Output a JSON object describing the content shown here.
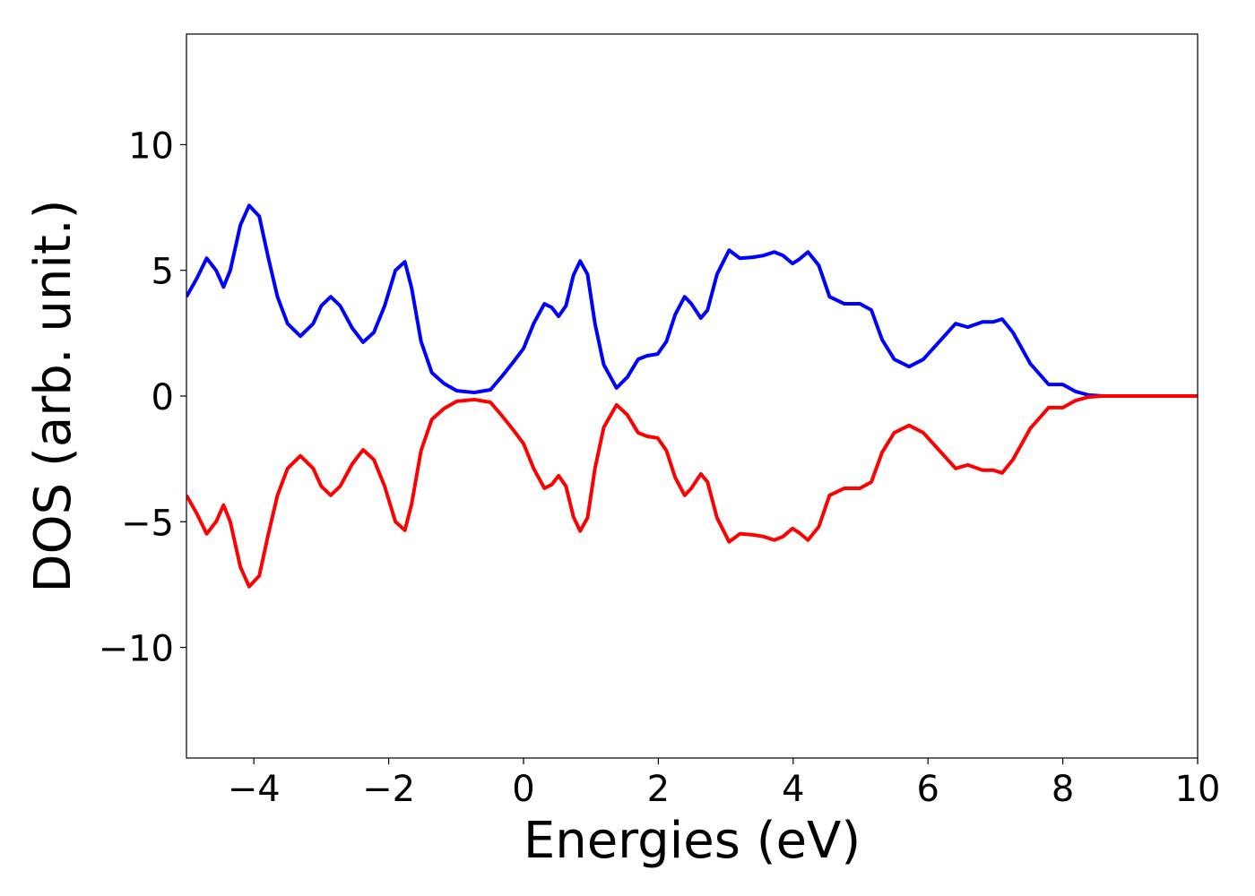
{
  "chart_data": {
    "type": "line",
    "x_label": "Energies (eV)",
    "y_label": "DOS (arb. unit.)",
    "x": [
      -5.0,
      -4.85,
      -4.7,
      -4.56,
      -4.45,
      -4.35,
      -4.2,
      -4.07,
      -3.92,
      -3.79,
      -3.65,
      -3.5,
      -3.31,
      -3.12,
      -3.0,
      -2.86,
      -2.72,
      -2.54,
      -2.38,
      -2.22,
      -2.06,
      -1.9,
      -1.76,
      -1.66,
      -1.52,
      -1.36,
      -1.18,
      -0.99,
      -0.73,
      -0.49,
      -0.33,
      -0.14,
      0.0,
      0.15,
      0.31,
      0.42,
      0.52,
      0.63,
      0.74,
      0.84,
      0.95,
      1.06,
      1.19,
      1.38,
      1.54,
      1.7,
      1.83,
      1.99,
      2.12,
      2.25,
      2.39,
      2.49,
      2.63,
      2.73,
      2.87,
      3.05,
      3.21,
      3.4,
      3.56,
      3.72,
      3.85,
      3.99,
      4.09,
      4.22,
      4.38,
      4.54,
      4.76,
      4.99,
      5.16,
      5.32,
      5.5,
      5.72,
      5.93,
      6.17,
      6.41,
      6.59,
      6.81,
      6.97,
      7.1,
      7.26,
      7.52,
      7.79,
      8.0,
      8.19,
      8.38,
      8.59,
      10.0
    ],
    "series": [
      {
        "color": "#0000ff",
        "values": [
          3.95,
          4.66,
          5.48,
          5.0,
          4.34,
          5.0,
          6.8,
          7.58,
          7.15,
          5.55,
          3.95,
          2.88,
          2.38,
          2.88,
          3.59,
          3.95,
          3.59,
          2.7,
          2.14,
          2.53,
          3.59,
          5.0,
          5.34,
          4.3,
          2.17,
          0.93,
          0.5,
          0.21,
          0.14,
          0.25,
          0.75,
          1.39,
          1.89,
          2.88,
          3.67,
          3.52,
          3.17,
          3.59,
          4.8,
          5.37,
          4.84,
          2.88,
          1.25,
          0.32,
          0.75,
          1.46,
          1.6,
          1.67,
          2.17,
          3.24,
          3.95,
          3.67,
          3.1,
          3.42,
          4.84,
          5.8,
          5.48,
          5.52,
          5.59,
          5.73,
          5.59,
          5.27,
          5.44,
          5.73,
          5.2,
          3.95,
          3.67,
          3.67,
          3.42,
          2.24,
          1.46,
          1.17,
          1.46,
          2.17,
          2.88,
          2.74,
          2.95,
          2.95,
          3.06,
          2.53,
          1.28,
          0.46,
          0.46,
          0.18,
          0.04,
          0,
          0
        ]
      },
      {
        "color": "#ff0000",
        "values": [
          -3.95,
          -4.66,
          -5.48,
          -5.0,
          -4.34,
          -5.0,
          -6.8,
          -7.58,
          -7.15,
          -5.55,
          -3.95,
          -2.88,
          -2.38,
          -2.88,
          -3.59,
          -3.95,
          -3.59,
          -2.7,
          -2.14,
          -2.53,
          -3.59,
          -5.0,
          -5.34,
          -4.3,
          -2.17,
          -0.93,
          -0.5,
          -0.21,
          -0.14,
          -0.25,
          -0.75,
          -1.39,
          -1.89,
          -2.88,
          -3.67,
          -3.52,
          -3.17,
          -3.59,
          -4.8,
          -5.37,
          -4.84,
          -2.88,
          -1.25,
          -0.35,
          -0.75,
          -1.46,
          -1.6,
          -1.67,
          -2.17,
          -3.24,
          -3.95,
          -3.67,
          -3.1,
          -3.42,
          -4.84,
          -5.8,
          -5.48,
          -5.52,
          -5.59,
          -5.73,
          -5.59,
          -5.27,
          -5.44,
          -5.73,
          -5.2,
          -3.95,
          -3.67,
          -3.67,
          -3.42,
          -2.24,
          -1.46,
          -1.17,
          -1.46,
          -2.17,
          -2.88,
          -2.74,
          -2.95,
          -2.95,
          -3.06,
          -2.53,
          -1.28,
          -0.46,
          -0.46,
          -0.18,
          -0.04,
          0,
          0
        ]
      }
    ],
    "xlim": [
      -5,
      10
    ],
    "xticks": [
      {
        "value": -4,
        "label": "−4"
      },
      {
        "value": -2,
        "label": "−2"
      },
      0,
      2,
      4,
      6,
      8,
      10
    ],
    "ylim": [
      -14.4,
      14.4
    ],
    "yticks": [
      {
        "value": -10,
        "label": "−10"
      },
      {
        "value": -5,
        "label": "−5"
      },
      0,
      5,
      10
    ],
    "grid": false
  }
}
